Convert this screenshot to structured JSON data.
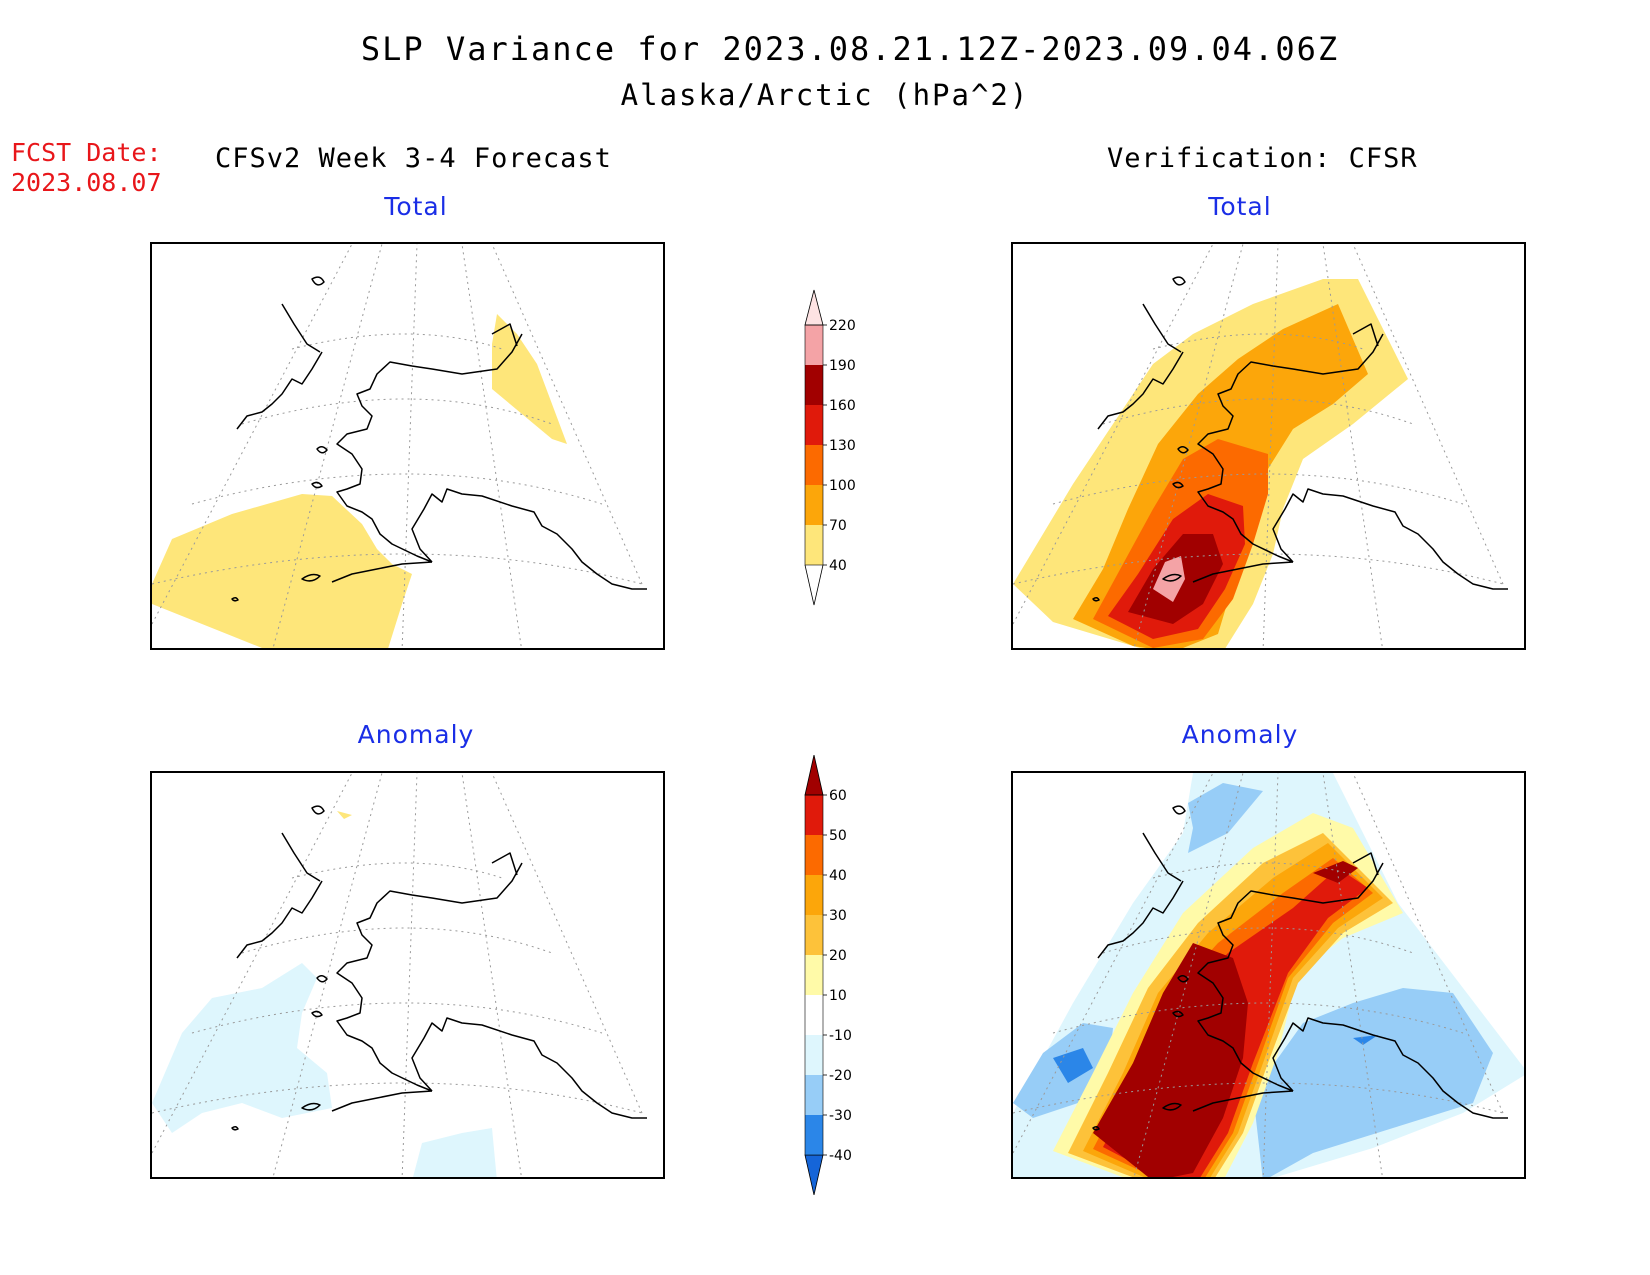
{
  "title": {
    "line1": "SLP Variance for 2023.08.21.12Z-2023.09.04.06Z",
    "line2": "Alaska/Arctic (hPa^2)"
  },
  "fcst": {
    "label": "FCST Date:",
    "date": "2023.08.07"
  },
  "headers": {
    "left": "CFSv2 Week 3-4 Forecast",
    "right": "Verification: CFSR"
  },
  "panels": {
    "forecast_total": {
      "label": "Total"
    },
    "verification_total": {
      "label": "Total"
    },
    "forecast_anomaly": {
      "label": "Anomaly"
    },
    "verification_anomaly": {
      "label": "Anomaly"
    }
  },
  "colorbars": {
    "total": {
      "levels": [
        "40",
        "70",
        "100",
        "130",
        "160",
        "190",
        "220"
      ],
      "colors": [
        "#fee67a",
        "#fca60a",
        "#fc6a00",
        "#e01a0b",
        "#a10000",
        "#f4a3a6",
        "#fde3e3"
      ]
    },
    "anomaly": {
      "levels": [
        "-40",
        "-30",
        "-20",
        "-10",
        "10",
        "20",
        "30",
        "40",
        "50",
        "60"
      ],
      "colors": [
        "#1565d8",
        "#2b86e8",
        "#97cdf7",
        "#def6fd",
        "#ffffff",
        "#fffaa8",
        "#fdc23a",
        "#fca60a",
        "#fc6a00",
        "#e01a0b",
        "#a10000"
      ]
    }
  },
  "colors": {
    "fcst_text": "#e8161a",
    "subtitle_text": "#1a2ee6"
  }
}
